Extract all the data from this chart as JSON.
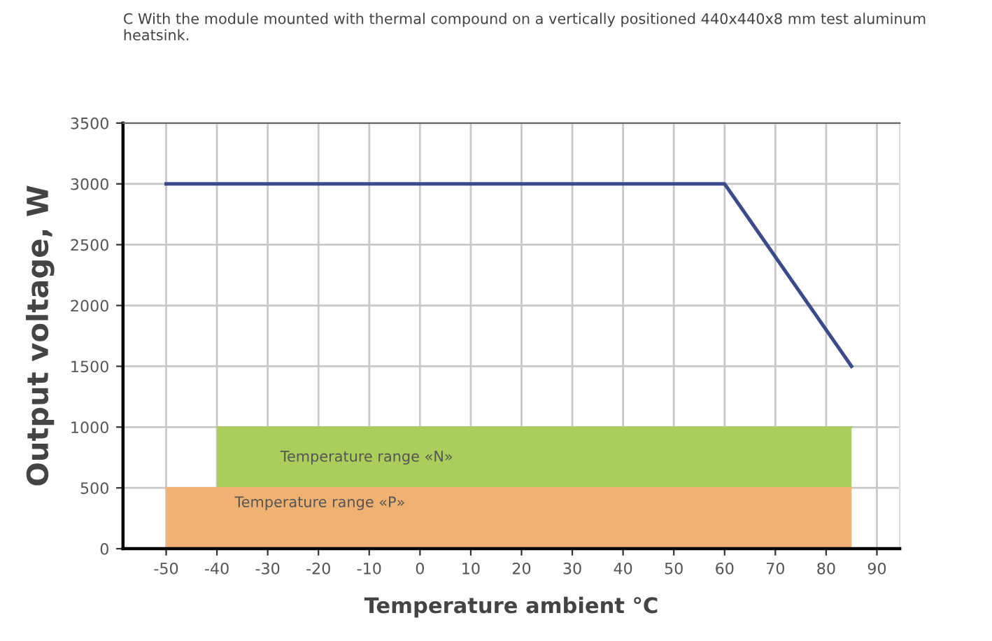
{
  "chart_data": {
    "type": "line",
    "xlabel": "Temperature ambient °C",
    "ylabel": "Output voltage, W",
    "annotations": [
      "C With the module mounted with thermal compound on a vertically positioned 440x440x8 mm test aluminum heatsink."
    ],
    "xlim": [
      -58.5,
      94.5
    ],
    "xticks": [
      -50,
      -40,
      -30,
      -20,
      -10,
      0,
      10,
      20,
      30,
      40,
      50,
      60,
      70,
      80,
      90
    ],
    "ylim": [
      0,
      3500
    ],
    "yticks": [
      0,
      500,
      1000,
      1500,
      2000,
      2500,
      3000,
      3500
    ],
    "grid": true,
    "marker": "none",
    "line_style": "solid",
    "series": [
      {
        "type": "area",
        "name": "Temperature range «N»",
        "color": "#aacd5c",
        "x": [
          -40,
          85
        ],
        "values": [
          1000,
          1000
        ]
      },
      {
        "type": "area",
        "name": "Temperature range «P»",
        "color": "#f0b272",
        "x": [
          -50,
          85
        ],
        "values": [
          500,
          500
        ]
      },
      {
        "color": "#3b4a8a",
        "x": [
          -50,
          60,
          85
        ],
        "values": [
          3000,
          3000,
          1500
        ]
      }
    ]
  }
}
